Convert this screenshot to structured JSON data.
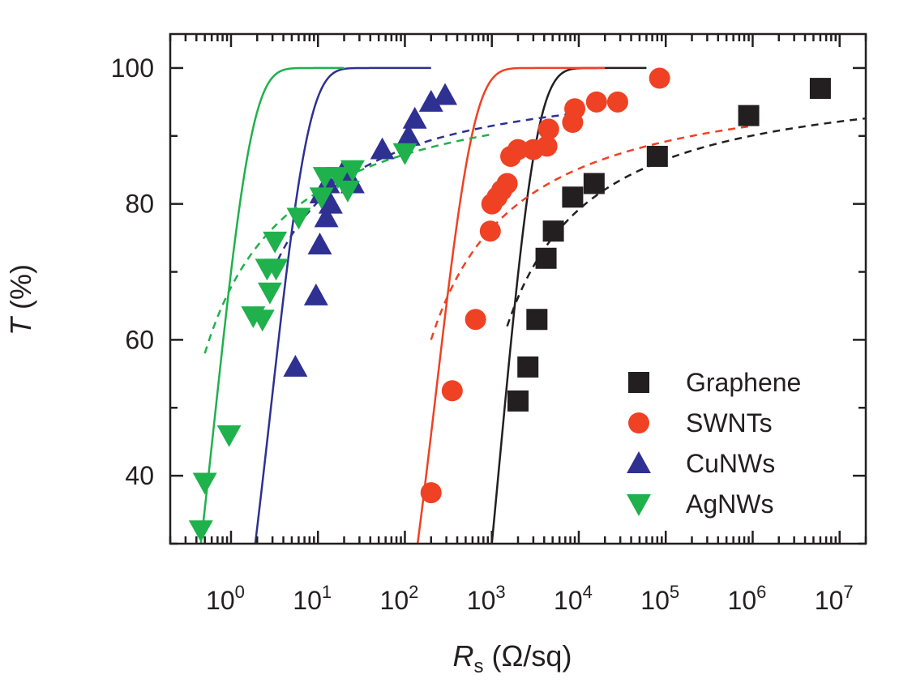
{
  "chart_data": {
    "type": "scatter",
    "x_axis": {
      "label_main": "R",
      "label_sub": "s",
      "label_unit": " (Ω/sq)",
      "scale": "log",
      "range": [
        0.2,
        20000000
      ],
      "tick_base": "10",
      "major_tick_exponents": [
        "0",
        "1",
        "2",
        "3",
        "4",
        "5",
        "6",
        "7"
      ]
    },
    "y_axis": {
      "label_main": "T",
      "label_unit": " (%)",
      "scale": "linear",
      "range": [
        30,
        105
      ],
      "major_tick_labels": [
        "40",
        "60",
        "80",
        "100"
      ],
      "major_ticks": [
        40,
        60,
        80,
        100
      ],
      "minor_ticks": [
        30,
        50,
        70,
        90
      ]
    },
    "legend": {
      "position": "bottom-right"
    },
    "series": [
      {
        "name": "Graphene",
        "color": "#231f20",
        "marker": "square",
        "points": [
          {
            "x": 2000,
            "y": 51
          },
          {
            "x": 2600,
            "y": 56
          },
          {
            "x": 3300,
            "y": 63
          },
          {
            "x": 4200,
            "y": 72
          },
          {
            "x": 5100,
            "y": 76
          },
          {
            "x": 8500,
            "y": 81
          },
          {
            "x": 15000,
            "y": 83
          },
          {
            "x": 80000,
            "y": 87
          },
          {
            "x": 900000,
            "y": 93
          },
          {
            "x": 6000000,
            "y": 97
          }
        ],
        "fit_solid": {
          "x0": 1000,
          "scale": 1200,
          "xmax": 60000
        },
        "fit_dashed": {
          "s": 38,
          "xmin": 1500,
          "xmax": 20000000
        }
      },
      {
        "name": "SWNTs",
        "color": "#ef4123",
        "marker": "circle",
        "points": [
          {
            "x": 200,
            "y": 37.5
          },
          {
            "x": 350,
            "y": 52.5
          },
          {
            "x": 650,
            "y": 63
          },
          {
            "x": 960,
            "y": 76
          },
          {
            "x": 1000,
            "y": 80
          },
          {
            "x": 1150,
            "y": 81
          },
          {
            "x": 1300,
            "y": 82
          },
          {
            "x": 1500,
            "y": 83
          },
          {
            "x": 1650,
            "y": 87
          },
          {
            "x": 2000,
            "y": 88
          },
          {
            "x": 3000,
            "y": 88
          },
          {
            "x": 4300,
            "y": 88.5
          },
          {
            "x": 4500,
            "y": 91
          },
          {
            "x": 8500,
            "y": 92
          },
          {
            "x": 9000,
            "y": 94
          },
          {
            "x": 16000,
            "y": 95
          },
          {
            "x": 28000,
            "y": 95
          },
          {
            "x": 85000,
            "y": 98.5
          }
        ],
        "fit_solid": {
          "x0": 140,
          "scale": 230,
          "xmax": 20000
        },
        "fit_dashed": {
          "s": 40,
          "xmin": 200,
          "xmax": 900000
        }
      },
      {
        "name": "CuNWs",
        "color": "#2e3092",
        "marker": "triangle-up",
        "points": [
          {
            "x": 5.5,
            "y": 56
          },
          {
            "x": 9.5,
            "y": 66.5
          },
          {
            "x": 10.5,
            "y": 74
          },
          {
            "x": 12.5,
            "y": 78
          },
          {
            "x": 14,
            "y": 80
          },
          {
            "x": 11,
            "y": 81.5
          },
          {
            "x": 13,
            "y": 83
          },
          {
            "x": 19,
            "y": 84.5
          },
          {
            "x": 25,
            "y": 83
          },
          {
            "x": 55,
            "y": 88
          },
          {
            "x": 110,
            "y": 90
          },
          {
            "x": 130,
            "y": 92.5
          },
          {
            "x": 200,
            "y": 95
          },
          {
            "x": 290,
            "y": 96
          }
        ],
        "fit_solid": {
          "x0": 1.9,
          "scale": 2.9,
          "xmax": 200
        },
        "fit_dashed": {
          "s": 30,
          "xmin": 3,
          "xmax": 10000
        }
      },
      {
        "name": "AgNWs",
        "color": "#1fb14c",
        "marker": "triangle-down",
        "points": [
          {
            "x": 0.45,
            "y": 32
          },
          {
            "x": 0.5,
            "y": 39
          },
          {
            "x": 0.95,
            "y": 46
          },
          {
            "x": 1.8,
            "y": 63.5
          },
          {
            "x": 2.3,
            "y": 63
          },
          {
            "x": 2.8,
            "y": 67
          },
          {
            "x": 2.6,
            "y": 70.5
          },
          {
            "x": 3.3,
            "y": 70.5
          },
          {
            "x": 3.2,
            "y": 74.5
          },
          {
            "x": 6,
            "y": 78
          },
          {
            "x": 11,
            "y": 81
          },
          {
            "x": 12,
            "y": 84
          },
          {
            "x": 17,
            "y": 84
          },
          {
            "x": 22,
            "y": 82
          },
          {
            "x": 25,
            "y": 85
          },
          {
            "x": 100,
            "y": 87.5
          }
        ],
        "fit_solid": {
          "x0": 0.45,
          "scale": 0.65,
          "xmax": 20
        },
        "fit_dashed": {
          "s": 42,
          "xmin": 0.5,
          "xmax": 1000
        }
      }
    ]
  }
}
